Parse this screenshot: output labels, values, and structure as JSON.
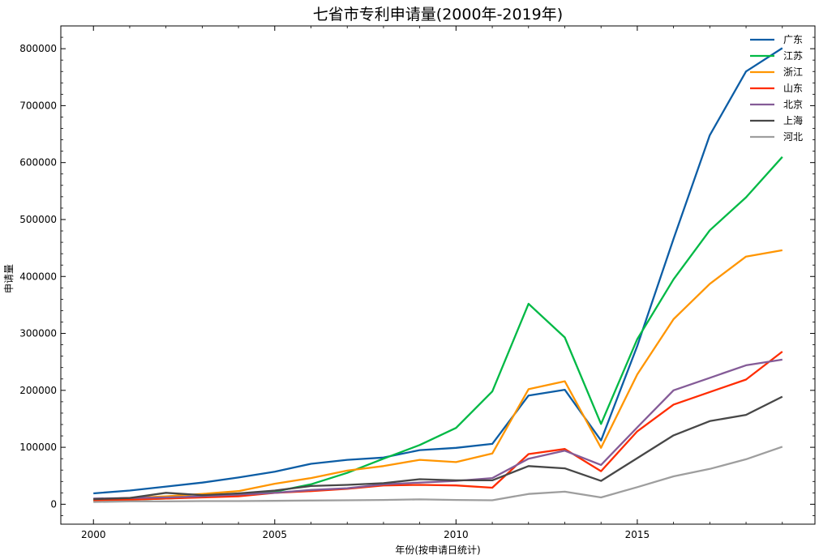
{
  "chart_data": {
    "type": "line",
    "title": "七省市专利申请量(2000年-2019年)",
    "xlabel": "年份(按申请日统计)",
    "ylabel": "申请量",
    "xlim": [
      1999.1,
      2019.9
    ],
    "ylim": [
      -35000,
      840000
    ],
    "xticks": [
      2000,
      2005,
      2010,
      2015
    ],
    "yticks": [
      0,
      100000,
      200000,
      300000,
      400000,
      500000,
      600000,
      700000,
      800000
    ],
    "xtick_labels": [
      "2000",
      "2005",
      "2010",
      "2015"
    ],
    "ytick_labels": [
      "0",
      "100000",
      "200000",
      "300000",
      "400000",
      "500000",
      "600000",
      "700000",
      "800000"
    ],
    "legend_position": "top-right",
    "grid": false,
    "x": [
      2000,
      2001,
      2002,
      2003,
      2004,
      2005,
      2006,
      2007,
      2008,
      2009,
      2010,
      2011,
      2012,
      2013,
      2014,
      2015,
      2016,
      2017,
      2018,
      2019
    ],
    "series": [
      {
        "name": "广东",
        "color": "#0c5da5",
        "values": [
          19000,
          24000,
          31000,
          38000,
          47000,
          57000,
          71000,
          78000,
          82000,
          95000,
          99000,
          106000,
          191000,
          201000,
          112000,
          278000,
          466000,
          648000,
          760000,
          801000
        ]
      },
      {
        "name": "江苏",
        "color": "#00b945",
        "values": [
          6000,
          8000,
          10000,
          13000,
          16000,
          22000,
          35000,
          55000,
          80000,
          104000,
          134000,
          198000,
          352000,
          293000,
          141000,
          290000,
          395000,
          481000,
          539000,
          610000
        ]
      },
      {
        "name": "浙江",
        "color": "#ff9500",
        "values": [
          9000,
          11000,
          14000,
          18000,
          23000,
          36000,
          46000,
          59000,
          67000,
          78000,
          74000,
          89000,
          202000,
          216000,
          99000,
          228000,
          325000,
          387000,
          435000,
          446000
        ]
      },
      {
        "name": "山东",
        "color": "#ff2c00",
        "values": [
          7000,
          8000,
          10000,
          12000,
          14000,
          20000,
          23000,
          27000,
          33000,
          34000,
          33000,
          29000,
          88000,
          97000,
          58000,
          128000,
          175000,
          197000,
          219000,
          268000
        ]
      },
      {
        "name": "北京",
        "color": "#845b97",
        "values": [
          10000,
          11000,
          12000,
          14000,
          17000,
          20000,
          25000,
          28000,
          35000,
          38000,
          41000,
          46000,
          80000,
          94000,
          69000,
          135000,
          200000,
          222000,
          244000,
          254000
        ]
      },
      {
        "name": "上海",
        "color": "#474747",
        "values": [
          9000,
          11000,
          20000,
          16000,
          19000,
          24000,
          32000,
          34000,
          37000,
          44000,
          42000,
          42000,
          67000,
          63000,
          41000,
          81000,
          121000,
          146000,
          157000,
          189000
        ]
      },
      {
        "name": "河北",
        "color": "#9e9e9e",
        "values": [
          4000,
          5000,
          5000,
          5500,
          5500,
          6000,
          6500,
          7000,
          7500,
          8500,
          7500,
          7000,
          18000,
          22000,
          12000,
          30000,
          49000,
          62000,
          79000,
          101000
        ]
      }
    ]
  }
}
